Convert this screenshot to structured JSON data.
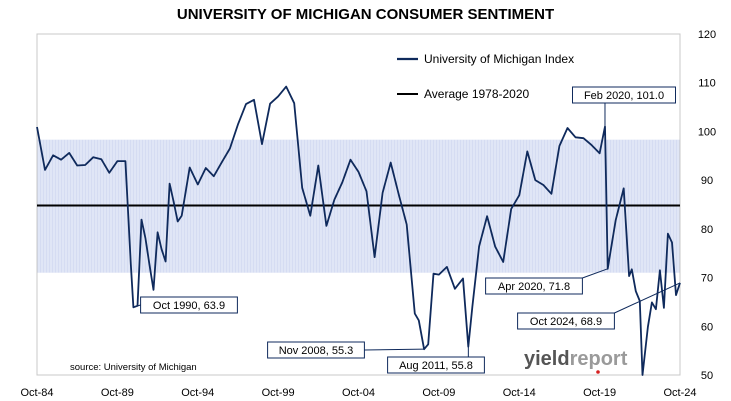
{
  "chart_data": {
    "type": "line",
    "title": "UNIVERSITY OF MICHIGAN CONSUMER SENTIMENT",
    "ylim": [
      50,
      120
    ],
    "yticks": [
      50,
      60,
      70,
      80,
      90,
      100,
      110,
      120
    ],
    "x_tick_labels": [
      "Oct-84",
      "Oct-89",
      "Oct-94",
      "Oct-99",
      "Oct-04",
      "Oct-09",
      "Oct-14",
      "Oct-19",
      "Oct-24"
    ],
    "y_axis_side": "right",
    "grid": false,
    "legend": {
      "placement": "top-center",
      "entries": [
        "University of Michigan Index",
        "Average 1978-2020"
      ]
    },
    "series": [
      {
        "name": "University of Michigan Index",
        "color": "#0f2a5c",
        "x": [
          "1984-10",
          "1985-04",
          "1985-10",
          "1986-04",
          "1986-10",
          "1987-04",
          "1987-10",
          "1988-04",
          "1988-10",
          "1989-04",
          "1989-10",
          "1990-04",
          "1990-08",
          "1990-10",
          "1991-01",
          "1991-04",
          "1991-07",
          "1991-10",
          "1992-01",
          "1992-04",
          "1992-07",
          "1992-10",
          "1993-01",
          "1993-04",
          "1993-07",
          "1993-10",
          "1994-04",
          "1994-10",
          "1995-04",
          "1995-10",
          "1996-04",
          "1996-10",
          "1997-04",
          "1997-10",
          "1998-04",
          "1998-10",
          "1999-04",
          "1999-10",
          "2000-04",
          "2000-10",
          "2001-04",
          "2001-10",
          "2002-04",
          "2002-10",
          "2003-04",
          "2003-10",
          "2004-04",
          "2004-10",
          "2005-04",
          "2005-10",
          "2006-04",
          "2006-10",
          "2007-04",
          "2007-10",
          "2008-04",
          "2008-07",
          "2008-11",
          "2009-02",
          "2009-06",
          "2009-10",
          "2010-04",
          "2010-10",
          "2011-04",
          "2011-08",
          "2011-11",
          "2012-04",
          "2012-10",
          "2013-04",
          "2013-10",
          "2014-04",
          "2014-10",
          "2015-04",
          "2015-10",
          "2016-04",
          "2016-10",
          "2017-04",
          "2017-10",
          "2018-04",
          "2018-10",
          "2019-04",
          "2019-10",
          "2020-02",
          "2020-04",
          "2020-10",
          "2021-04",
          "2021-08",
          "2021-10",
          "2022-01",
          "2022-04",
          "2022-06",
          "2022-10",
          "2023-01",
          "2023-04",
          "2023-07",
          "2023-10",
          "2024-01",
          "2024-04",
          "2024-07",
          "2024-10"
        ],
        "values": [
          100.9,
          92.1,
          95.1,
          94.2,
          95.6,
          93.0,
          93.1,
          94.7,
          94.3,
          91.5,
          93.9,
          93.9,
          72.8,
          63.9,
          64.2,
          81.9,
          78.0,
          72.6,
          67.5,
          79.3,
          75.8,
          73.3,
          89.3,
          85.6,
          81.5,
          82.7,
          92.6,
          89.1,
          92.5,
          90.8,
          93.7,
          96.5,
          101.4,
          105.6,
          106.5,
          97.4,
          105.7,
          107.2,
          109.2,
          105.8,
          88.4,
          82.7,
          93.0,
          80.6,
          86.0,
          89.6,
          94.2,
          91.7,
          87.7,
          74.2,
          87.4,
          93.6,
          87.1,
          80.9,
          62.6,
          61.2,
          55.3,
          56.3,
          70.8,
          70.6,
          72.2,
          67.7,
          69.8,
          55.8,
          64.1,
          76.4,
          82.6,
          76.4,
          73.2,
          84.1,
          86.9,
          95.9,
          90.0,
          89.0,
          87.2,
          97.0,
          100.7,
          98.8,
          98.6,
          97.2,
          95.5,
          101.0,
          71.8,
          81.8,
          88.3,
          70.3,
          71.7,
          67.2,
          65.2,
          50.0,
          59.9,
          64.9,
          63.5,
          71.5,
          63.8,
          79.0,
          77.2,
          66.4,
          68.9
        ]
      },
      {
        "name": "Average 1978-2020",
        "color": "#000000",
        "values": [
          84.8
        ]
      }
    ],
    "shaded_band": {
      "from": 71,
      "to": 98.3,
      "color": "#d5dcf2"
    },
    "annotations": [
      {
        "label": "Feb 2020, 101.0",
        "x": "2020-02",
        "y": 101.0
      },
      {
        "label": "Oct 1990, 63.9",
        "x": "1990-10",
        "y": 63.9
      },
      {
        "label": "Apr 2020, 71.8",
        "x": "2020-04",
        "y": 71.8
      },
      {
        "label": "Oct 2024, 68.9",
        "x": "2024-10",
        "y": 68.9
      },
      {
        "label": "Nov 2008, 55.3",
        "x": "2008-11",
        "y": 55.3
      },
      {
        "label": "Aug 2011, 55.8",
        "x": "2011-08",
        "y": 55.8
      }
    ],
    "source": "source: University of Michigan",
    "brand": {
      "part1": "yield",
      "part2": "report"
    }
  }
}
